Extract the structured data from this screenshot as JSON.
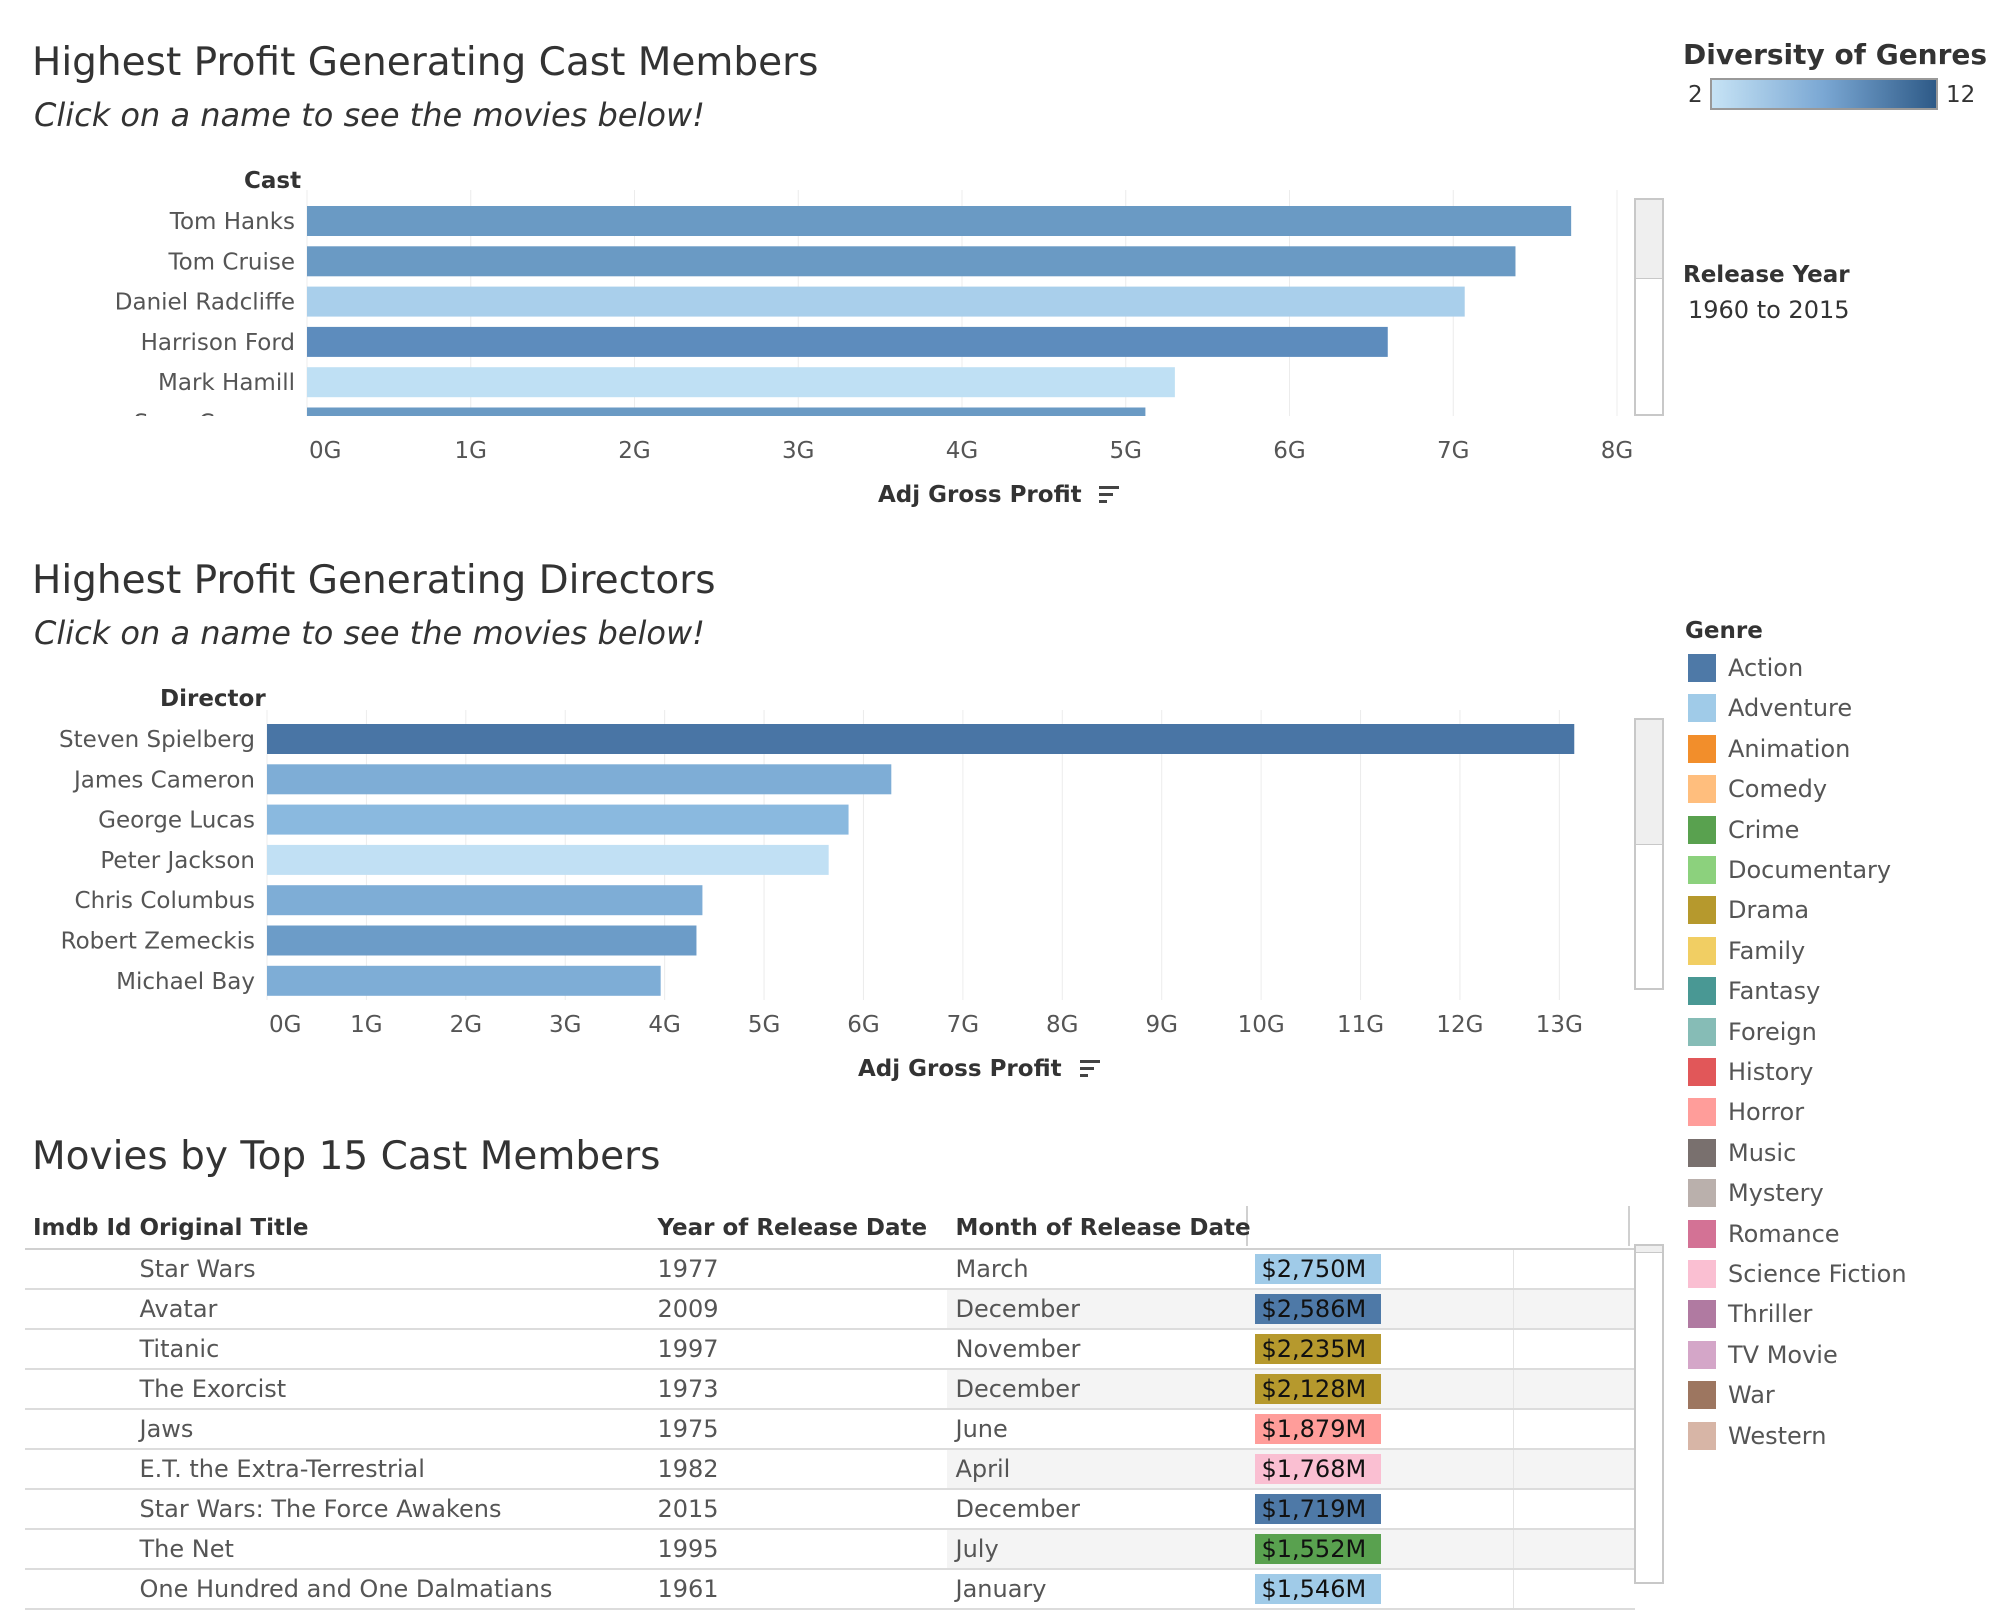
{
  "cast_section": {
    "title": "Highest Profit Generating Cast Members",
    "subtitle": "Click on a name to see the movies below!",
    "row_header": "Cast",
    "axis_label": "Adj Gross Profit",
    "sort_icon": "sort-descending-icon"
  },
  "director_section": {
    "title": "Highest Profit Generating Directors",
    "subtitle": "Click on a name to see the movies below!",
    "row_header": "Director",
    "axis_label": "Adj Gross Profit",
    "sort_icon": "sort-descending-icon"
  },
  "movies_section": {
    "title": "Movies by Top 15 Cast Members",
    "columns": [
      "Imdb Id",
      "Original Title",
      "Year of Release Date",
      "Month of Release Date",
      ""
    ],
    "rows": [
      {
        "title": "Star Wars",
        "year": "1977",
        "month": "March",
        "profit": "$2,750M",
        "genre_color": "#a0cbe8"
      },
      {
        "title": "Avatar",
        "year": "2009",
        "month": "December",
        "profit": "$2,586M",
        "genre_color": "#4e79a7"
      },
      {
        "title": "Titanic",
        "year": "1997",
        "month": "November",
        "profit": "$2,235M",
        "genre_color": "#b6992d"
      },
      {
        "title": "The Exorcist",
        "year": "1973",
        "month": "December",
        "profit": "$2,128M",
        "genre_color": "#b6992d"
      },
      {
        "title": "Jaws",
        "year": "1975",
        "month": "June",
        "profit": "$1,879M",
        "genre_color": "#ff9d9a"
      },
      {
        "title": "E.T. the Extra-Terrestrial",
        "year": "1982",
        "month": "April",
        "profit": "$1,768M",
        "genre_color": "#fabfd2"
      },
      {
        "title": "Star Wars: The Force Awakens",
        "year": "2015",
        "month": "December",
        "profit": "$1,719M",
        "genre_color": "#4e79a7"
      },
      {
        "title": "The Net",
        "year": "1995",
        "month": "July",
        "profit": "$1,552M",
        "genre_color": "#59a14f"
      },
      {
        "title": "One Hundred and One Dalmatians",
        "year": "1961",
        "month": "January",
        "profit": "$1,546M",
        "genre_color": "#a0cbe8"
      }
    ]
  },
  "diversity_legend": {
    "title": "Diversity of Genres",
    "min_label": "2",
    "max_label": "12",
    "min_color": "#c6e3f5",
    "max_color": "#2e5a87"
  },
  "release_year_filter": {
    "title": "Release Year",
    "value": "1960 to 2015"
  },
  "genre_legend": {
    "title": "Genre",
    "items": [
      {
        "label": "Action",
        "color": "#4e79a7"
      },
      {
        "label": "Adventure",
        "color": "#a0cbe8"
      },
      {
        "label": "Animation",
        "color": "#f28e2b"
      },
      {
        "label": "Comedy",
        "color": "#ffbe7d"
      },
      {
        "label": "Crime",
        "color": "#59a14f"
      },
      {
        "label": "Documentary",
        "color": "#8cd17d"
      },
      {
        "label": "Drama",
        "color": "#b6992d"
      },
      {
        "label": "Family",
        "color": "#f1ce63"
      },
      {
        "label": "Fantasy",
        "color": "#499894"
      },
      {
        "label": "Foreign",
        "color": "#86bcb6"
      },
      {
        "label": "History",
        "color": "#e15759"
      },
      {
        "label": "Horror",
        "color": "#ff9d9a"
      },
      {
        "label": "Music",
        "color": "#79706e"
      },
      {
        "label": "Mystery",
        "color": "#bab0ac"
      },
      {
        "label": "Romance",
        "color": "#d37295"
      },
      {
        "label": "Science Fiction",
        "color": "#fabfd2"
      },
      {
        "label": "Thriller",
        "color": "#b07aa1"
      },
      {
        "label": "TV Movie",
        "color": "#d4a6c8"
      },
      {
        "label": "War",
        "color": "#9d7660"
      },
      {
        "label": "Western",
        "color": "#d7b5a6"
      }
    ]
  },
  "chart_data": [
    {
      "type": "bar",
      "orientation": "horizontal",
      "title": "Highest Profit Generating Cast Members",
      "xlabel": "Adj Gross Profit",
      "ylabel": "Cast",
      "xlim": [
        0,
        8
      ],
      "x_unit": "G",
      "ticks": [
        "0G",
        "1G",
        "2G",
        "3G",
        "4G",
        "5G",
        "6G",
        "7G",
        "8G"
      ],
      "categories": [
        "Tom Hanks",
        "Tom Cruise",
        "Daniel Radcliffe",
        "Harrison Ford",
        "Mark Hamill",
        "Sean Connery"
      ],
      "values": [
        7.72,
        7.38,
        7.07,
        6.6,
        5.3,
        5.12
      ],
      "colors": [
        "#6a9ac4",
        "#6a9ac4",
        "#a9cfeb",
        "#5d8cbd",
        "#bfe0f4",
        "#6a9ac4"
      ],
      "grid": true
    },
    {
      "type": "bar",
      "orientation": "horizontal",
      "title": "Highest Profit Generating Directors",
      "xlabel": "Adj Gross Profit",
      "ylabel": "Director",
      "xlim": [
        0,
        13.6
      ],
      "x_unit": "G",
      "ticks": [
        "0G",
        "1G",
        "2G",
        "3G",
        "4G",
        "5G",
        "6G",
        "7G",
        "8G",
        "9G",
        "10G",
        "11G",
        "12G",
        "13G"
      ],
      "categories": [
        "Steven Spielberg",
        "James Cameron",
        "George Lucas",
        "Peter Jackson",
        "Chris Columbus",
        "Robert Zemeckis",
        "Michael Bay"
      ],
      "values": [
        13.15,
        6.28,
        5.85,
        5.65,
        4.38,
        4.32,
        3.96
      ],
      "colors": [
        "#4975a5",
        "#7eadd6",
        "#8ab9df",
        "#c1e0f4",
        "#7eadd6",
        "#6c9cc8",
        "#7eadd6"
      ],
      "grid": true
    }
  ]
}
